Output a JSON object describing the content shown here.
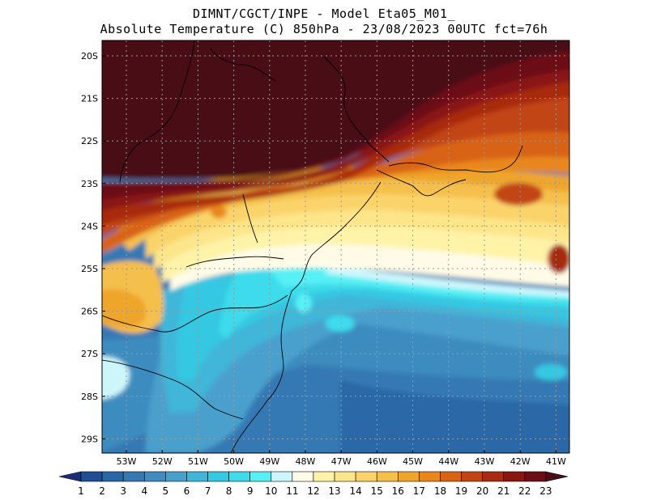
{
  "header": {
    "line1": "DIMNT/CGCT/INPE -  Model Eta05_M01_",
    "line2": "Absolute Temperature (C) 850hPa -  23/08/2023 00UTC fct=76h"
  },
  "map": {
    "lat_labels": [
      "20S",
      "21S",
      "22S",
      "23S",
      "24S",
      "25S",
      "26S",
      "27S",
      "28S",
      "29S"
    ],
    "lon_labels": [
      "53W",
      "52W",
      "51W",
      "50W",
      "49W",
      "48W",
      "47W",
      "46W",
      "45W",
      "44W",
      "43W",
      "42W",
      "41W"
    ]
  },
  "colorbar": {
    "labels": [
      "1",
      "2",
      "3",
      "4",
      "5",
      "6",
      "7",
      "8",
      "9",
      "10",
      "11",
      "12",
      "13",
      "14",
      "15",
      "16",
      "17",
      "18",
      "19",
      "20",
      "21",
      "22",
      "23"
    ],
    "colors": [
      "#1a2f7c",
      "#1f4e92",
      "#2a67a8",
      "#3479b4",
      "#3e8cc0",
      "#48a0cc",
      "#3fb6d8",
      "#35c8e2",
      "#3ddbeb",
      "#57f0f5",
      "#cdf6fb",
      "#fffbe6",
      "#fff3a8",
      "#fde58a",
      "#fad46a",
      "#f5bf4c",
      "#efa52a",
      "#e9871b",
      "#d86412",
      "#c24412",
      "#a82a10",
      "#8a1612",
      "#6c0d16",
      "#4a0e14"
    ]
  }
}
